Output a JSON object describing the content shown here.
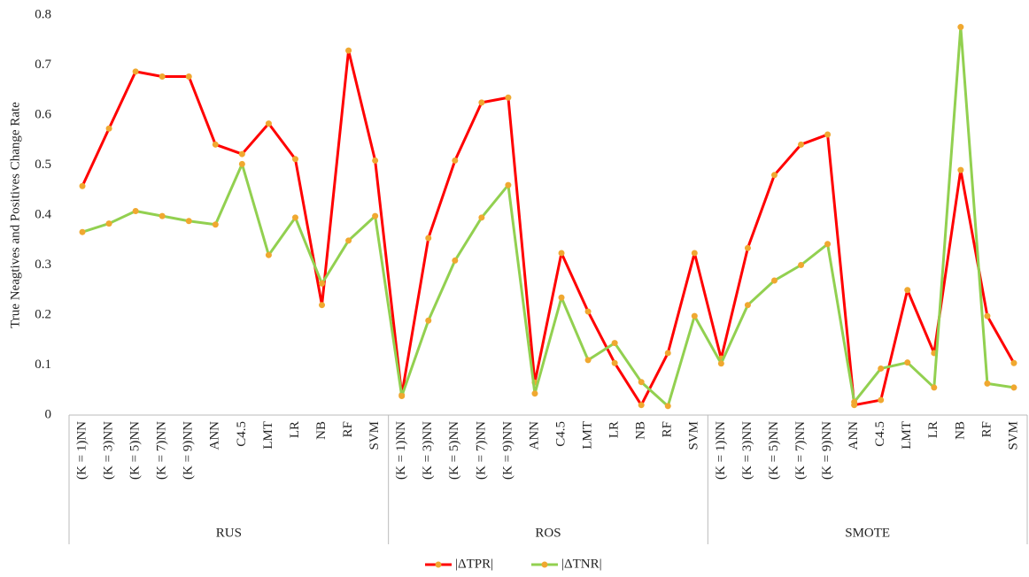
{
  "chart_data": {
    "type": "line",
    "y_label": "True Neagtives and Positives Change Rate",
    "groups": [
      "RUS",
      "ROS",
      "SMOTE"
    ],
    "categories": [
      "(K = 1)NN",
      "(K = 3)NN",
      "(K = 5)NN",
      "(K = 7)NN",
      "(K = 9)NN",
      "ANN",
      "C4.5",
      "LMT",
      "LR",
      "NB",
      "RF",
      "SVM",
      "(K = 1)NN",
      "(K = 3)NN",
      "(K = 5)NN",
      "(K = 7)NN",
      "(K = 9)NN",
      "ANN",
      "C4.5",
      "LMT",
      "LR",
      "NB",
      "RF",
      "SVM",
      "(K = 1)NN",
      "(K = 3)NN",
      "(K = 5)NN",
      "(K = 7)NN",
      "(K = 9)NN",
      "ANN",
      "C4.5",
      "LMT",
      "LR",
      "NB",
      "RF",
      "SVM"
    ],
    "series": [
      {
        "name": "|ΔTPR|",
        "color": "#ff0000",
        "values": [
          0.458,
          0.573,
          0.687,
          0.677,
          0.677,
          0.541,
          0.522,
          0.583,
          0.512,
          0.22,
          0.729,
          0.509,
          0.04,
          0.354,
          0.509,
          0.625,
          0.635,
          0.065,
          0.324,
          0.207,
          0.104,
          0.02,
          0.124,
          0.324,
          0.113,
          0.334,
          0.48,
          0.541,
          0.561,
          0.02,
          0.03,
          0.25,
          0.124,
          0.49,
          0.198,
          0.104
        ]
      },
      {
        "name": "|ΔTNR|",
        "color": "#92d050",
        "values": [
          0.366,
          0.383,
          0.408,
          0.398,
          0.388,
          0.381,
          0.502,
          0.32,
          0.395,
          0.263,
          0.349,
          0.398,
          0.038,
          0.189,
          0.309,
          0.395,
          0.46,
          0.043,
          0.235,
          0.11,
          0.144,
          0.066,
          0.018,
          0.198,
          0.103,
          0.22,
          0.269,
          0.3,
          0.342,
          0.026,
          0.093,
          0.105,
          0.055,
          0.776,
          0.063,
          0.055
        ]
      }
    ],
    "marker_color": "#f0a830",
    "ylim": [
      0,
      0.8
    ],
    "yticks": [
      0,
      0.1,
      0.2,
      0.3,
      0.4,
      0.5,
      0.6,
      0.7,
      0.8
    ]
  }
}
